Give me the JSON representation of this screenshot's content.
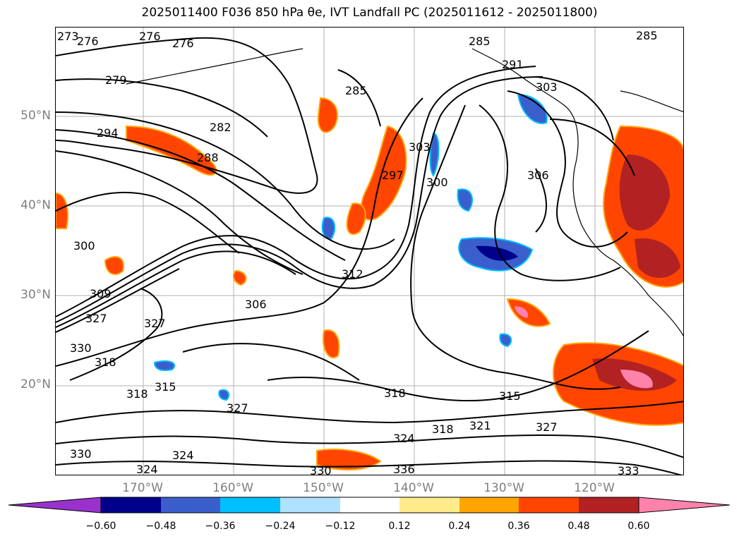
{
  "title": "2025011400 F036 850 hPa θe, IVT Landfall PC (2025011612 - 2025011800)",
  "map": {
    "lat_labels": [
      "50°N",
      "40°N",
      "30°N",
      "20°N"
    ],
    "lon_labels": [
      "170°W",
      "160°W",
      "150°W",
      "140°W",
      "130°W",
      "120°W"
    ],
    "contour_labels": [
      "273",
      "276",
      "276",
      "276",
      "279",
      "282",
      "285",
      "285",
      "285",
      "288",
      "291",
      "294",
      "297",
      "300",
      "300",
      "303",
      "303",
      "306",
      "306",
      "309",
      "312",
      "315",
      "315",
      "318",
      "318",
      "318",
      "318",
      "321",
      "324",
      "324",
      "324",
      "327",
      "327",
      "327",
      "327",
      "330",
      "330",
      "330",
      "333",
      "336"
    ]
  },
  "colorbar": {
    "ticks": [
      "−0.60",
      "−0.48",
      "−0.36",
      "−0.24",
      "−0.12",
      "0.12",
      "0.24",
      "0.36",
      "0.48",
      "0.60"
    ],
    "colors": [
      "#9932cc",
      "#00008b",
      "#3a5fcd",
      "#00bfff",
      "#b0e2ff",
      "#ffffff",
      "#ffec8b",
      "#ffa500",
      "#ff4500",
      "#b22222",
      "#ff82ab"
    ]
  }
}
